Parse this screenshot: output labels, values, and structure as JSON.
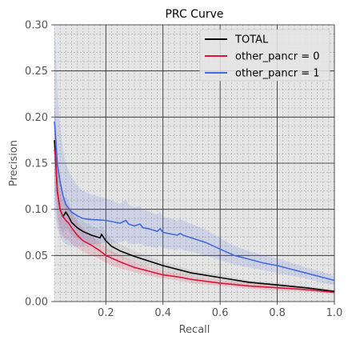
{
  "chart_data": {
    "type": "line",
    "title": "PRC Curve",
    "xlabel": "Recall",
    "ylabel": "Precision",
    "xlim": [
      0.02,
      1.0
    ],
    "ylim": [
      0.0,
      0.3
    ],
    "x_ticks": [
      0.2,
      0.4,
      0.6,
      0.8,
      1.0
    ],
    "x_tick_labels": [
      "0.2",
      "0.4",
      "0.6",
      "0.8",
      "1.0"
    ],
    "y_ticks": [
      0.0,
      0.05,
      0.1,
      0.15,
      0.2,
      0.25,
      0.3
    ],
    "y_tick_labels": [
      "0.00",
      "0.05",
      "0.10",
      "0.15",
      "0.20",
      "0.25",
      "0.30"
    ],
    "grid": true,
    "minor_grid": true,
    "legend_position": "top-right",
    "background": "#e5e5e5",
    "series": [
      {
        "name": "TOTAL",
        "color": "#000000",
        "x": [
          0.02,
          0.025,
          0.03,
          0.04,
          0.05,
          0.06,
          0.07,
          0.08,
          0.1,
          0.12,
          0.15,
          0.18,
          0.185,
          0.2,
          0.22,
          0.25,
          0.3,
          0.35,
          0.4,
          0.45,
          0.5,
          0.6,
          0.7,
          0.8,
          0.9,
          1.0
        ],
        "y": [
          0.175,
          0.15,
          0.12,
          0.1,
          0.092,
          0.097,
          0.092,
          0.086,
          0.08,
          0.076,
          0.072,
          0.069,
          0.073,
          0.066,
          0.06,
          0.055,
          0.049,
          0.044,
          0.039,
          0.035,
          0.031,
          0.026,
          0.021,
          0.018,
          0.015,
          0.011
        ],
        "band_lower": [
          0.14,
          0.12,
          0.095,
          0.08,
          0.074,
          0.08,
          0.076,
          0.072,
          0.068,
          0.065,
          0.062,
          0.06,
          0.063,
          0.057,
          0.052,
          0.048,
          0.043,
          0.039,
          0.035,
          0.031,
          0.028,
          0.023,
          0.019,
          0.016,
          0.013,
          0.009
        ],
        "band_upper": [
          0.21,
          0.18,
          0.15,
          0.12,
          0.11,
          0.115,
          0.108,
          0.1,
          0.092,
          0.087,
          0.082,
          0.078,
          0.083,
          0.075,
          0.068,
          0.062,
          0.055,
          0.049,
          0.043,
          0.039,
          0.034,
          0.029,
          0.023,
          0.02,
          0.017,
          0.013
        ],
        "band_color": "#7f7f7f"
      },
      {
        "name": "other_pancr = 0",
        "color": "#dc143c",
        "x": [
          0.02,
          0.025,
          0.03,
          0.04,
          0.05,
          0.06,
          0.07,
          0.08,
          0.1,
          0.12,
          0.15,
          0.18,
          0.2,
          0.25,
          0.3,
          0.35,
          0.4,
          0.45,
          0.5,
          0.6,
          0.7,
          0.8,
          0.9,
          1.0
        ],
        "y": [
          0.165,
          0.155,
          0.12,
          0.1,
          0.092,
          0.088,
          0.085,
          0.08,
          0.072,
          0.066,
          0.061,
          0.055,
          0.05,
          0.043,
          0.037,
          0.033,
          0.029,
          0.027,
          0.024,
          0.02,
          0.017,
          0.015,
          0.013,
          0.01
        ],
        "band_lower": [
          0.12,
          0.11,
          0.09,
          0.075,
          0.07,
          0.068,
          0.066,
          0.063,
          0.058,
          0.054,
          0.05,
          0.046,
          0.042,
          0.036,
          0.032,
          0.028,
          0.025,
          0.023,
          0.02,
          0.017,
          0.014,
          0.012,
          0.011,
          0.008
        ],
        "band_upper": [
          0.21,
          0.2,
          0.16,
          0.13,
          0.115,
          0.108,
          0.104,
          0.098,
          0.087,
          0.079,
          0.072,
          0.064,
          0.058,
          0.05,
          0.043,
          0.038,
          0.034,
          0.031,
          0.028,
          0.023,
          0.02,
          0.018,
          0.015,
          0.012
        ],
        "band_color": "#dc143c"
      },
      {
        "name": "other_pancr = 1",
        "color": "#4169e1",
        "x": [
          0.02,
          0.025,
          0.03,
          0.04,
          0.05,
          0.06,
          0.08,
          0.1,
          0.12,
          0.15,
          0.2,
          0.25,
          0.27,
          0.28,
          0.3,
          0.32,
          0.33,
          0.35,
          0.38,
          0.39,
          0.4,
          0.45,
          0.46,
          0.47,
          0.5,
          0.55,
          0.6,
          0.65,
          0.7,
          0.75,
          0.8,
          0.85,
          0.9,
          0.95,
          1.0
        ],
        "y": [
          0.195,
          0.175,
          0.15,
          0.13,
          0.115,
          0.105,
          0.097,
          0.093,
          0.09,
          0.089,
          0.088,
          0.085,
          0.088,
          0.084,
          0.082,
          0.084,
          0.08,
          0.079,
          0.076,
          0.079,
          0.075,
          0.072,
          0.074,
          0.072,
          0.069,
          0.064,
          0.057,
          0.05,
          0.046,
          0.042,
          0.039,
          0.035,
          0.031,
          0.027,
          0.023
        ],
        "band_lower": [
          0.1,
          0.09,
          0.08,
          0.07,
          0.065,
          0.062,
          0.06,
          0.06,
          0.06,
          0.062,
          0.064,
          0.064,
          0.066,
          0.063,
          0.062,
          0.063,
          0.061,
          0.06,
          0.058,
          0.061,
          0.058,
          0.056,
          0.058,
          0.056,
          0.054,
          0.05,
          0.045,
          0.04,
          0.037,
          0.034,
          0.031,
          0.028,
          0.025,
          0.021,
          0.018
        ],
        "band_upper": [
          0.3,
          0.27,
          0.23,
          0.19,
          0.165,
          0.15,
          0.135,
          0.126,
          0.12,
          0.116,
          0.112,
          0.106,
          0.11,
          0.105,
          0.102,
          0.104,
          0.099,
          0.098,
          0.094,
          0.097,
          0.092,
          0.088,
          0.09,
          0.088,
          0.084,
          0.078,
          0.069,
          0.06,
          0.055,
          0.05,
          0.047,
          0.042,
          0.037,
          0.033,
          0.028
        ],
        "band_color": "#4169e1"
      }
    ]
  }
}
